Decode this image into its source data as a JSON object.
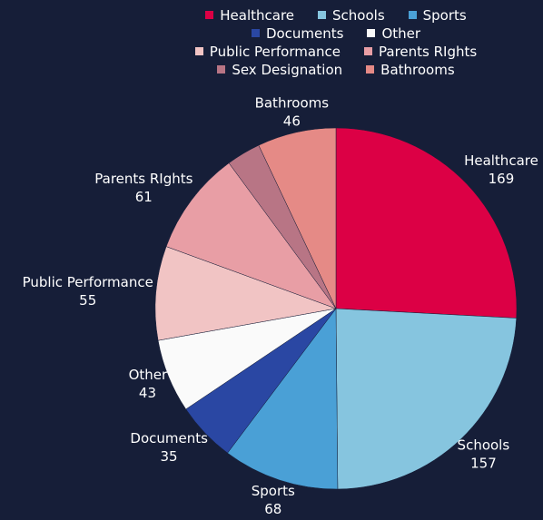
{
  "chart_data": {
    "type": "pie",
    "categories": [
      "Healthcare",
      "Schools",
      "Sports",
      "Documents",
      "Other",
      "Public Performance",
      "Parents RIghts",
      "Sex Designation",
      "Bathrooms"
    ],
    "values": [
      169,
      157,
      68,
      35,
      43,
      55,
      61,
      20,
      46
    ],
    "colors": [
      "#dc0045",
      "#86c5df",
      "#4aa0d6",
      "#2a47a3",
      "#fafafa",
      "#f1c4c4",
      "#e89ea5",
      "#b87585",
      "#e58a86"
    ],
    "legend": "top"
  }
}
